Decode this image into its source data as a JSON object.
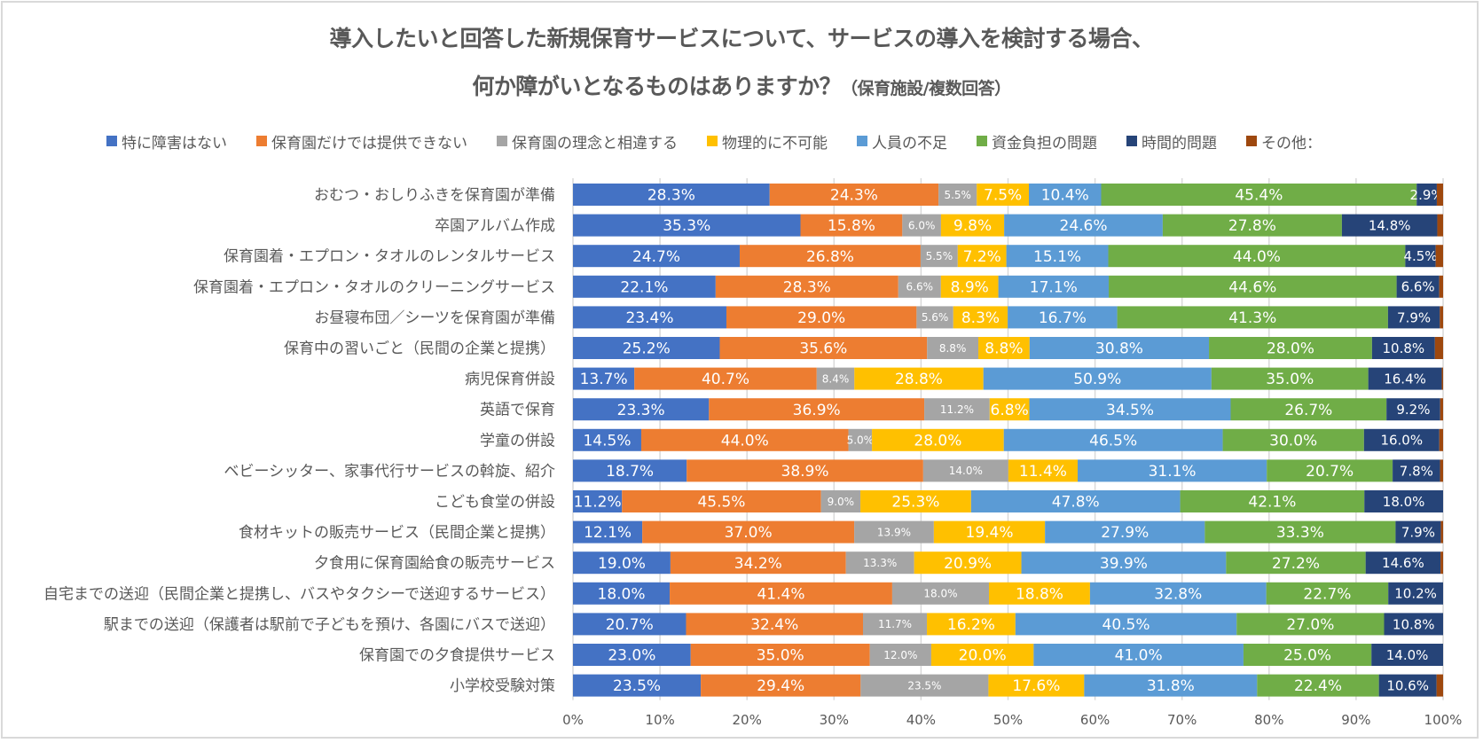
{
  "chart_data": {
    "type": "bar",
    "orientation": "horizontal",
    "stacked": "percent",
    "title": "導入したいと回答した新規保育サービスについて、サービスの導入を検討する場合、",
    "title_line2": "何か障がいとなるものはありますか？",
    "subtitle": "（保育施設/複数回答）",
    "xlabel": "",
    "ylabel": "",
    "xlim": [
      0,
      100
    ],
    "x_ticks": [
      "0%",
      "10%",
      "20%",
      "30%",
      "40%",
      "50%",
      "60%",
      "70%",
      "80%",
      "90%",
      "100%"
    ],
    "grid": true,
    "legend_position": "top",
    "categories": [
      "おむつ・おしりふきを保育園が準備",
      "卒園アルバム作成",
      "保育園着・エプロン・タオルのレンタルサービス",
      "保育園着・エプロン・タオルのクリーニングサービス",
      "お昼寝布団／シーツを保育園が準備",
      "保育中の習いごと（民間の企業と提携）",
      "病児保育併設",
      "英語で保育",
      "学童の併設",
      "ベビーシッター、家事代行サービスの斡旋、紹介",
      "こども食堂の併設",
      "食材キットの販売サービス（民間企業と提携）",
      "夕食用に保育園給食の販売サービス",
      "自宅までの送迎（民間企業と提携し、バスやタクシーで送迎するサービス）",
      "駅までの送迎（保護者は駅前で子どもを預け、各園にバスで送迎）",
      "保育園での夕食提供サービス",
      "小学校受験対策"
    ],
    "series": [
      {
        "name": "特に障害はない",
        "color": "#4472c4",
        "label_size": "large",
        "values": [
          28.3,
          35.3,
          24.7,
          22.1,
          23.4,
          25.2,
          13.7,
          23.3,
          14.5,
          18.7,
          11.2,
          12.1,
          19.0,
          18.0,
          20.7,
          23.0,
          23.5
        ]
      },
      {
        "name": "保育園だけでは提供できない",
        "color": "#ed7d31",
        "label_size": "large",
        "values": [
          24.3,
          15.8,
          26.8,
          28.3,
          29.0,
          35.6,
          40.7,
          36.9,
          44.0,
          38.9,
          45.5,
          37.0,
          34.2,
          41.4,
          32.4,
          35.0,
          29.4
        ]
      },
      {
        "name": "保育園の理念と相違する",
        "color": "#a5a5a5",
        "label_size": "small",
        "values": [
          5.5,
          6.0,
          5.5,
          6.6,
          5.6,
          8.8,
          8.4,
          11.2,
          5.0,
          14.0,
          9.0,
          13.9,
          13.3,
          18.0,
          11.7,
          12.0,
          23.5
        ]
      },
      {
        "name": "物理的に不可能",
        "color": "#ffc000",
        "label_size": "large",
        "values": [
          7.5,
          9.8,
          7.2,
          8.9,
          8.3,
          8.8,
          28.8,
          6.8,
          28.0,
          11.4,
          25.3,
          19.4,
          20.9,
          18.8,
          16.2,
          20.0,
          17.6
        ]
      },
      {
        "name": "人員の不足",
        "color": "#5b9bd5",
        "label_size": "large",
        "values": [
          10.4,
          24.6,
          15.1,
          17.1,
          16.7,
          30.8,
          50.9,
          34.5,
          46.5,
          31.1,
          47.8,
          27.9,
          39.9,
          32.8,
          40.5,
          41.0,
          31.8
        ]
      },
      {
        "name": "資金負担の問題",
        "color": "#70ad47",
        "label_size": "large",
        "values": [
          45.4,
          27.8,
          44.0,
          44.6,
          41.3,
          28.0,
          35.0,
          26.7,
          30.0,
          20.7,
          42.1,
          33.3,
          27.2,
          22.7,
          27.0,
          25.0,
          22.4
        ]
      },
      {
        "name": "時間的問題",
        "color": "#264478",
        "label_size": "medium",
        "values": [
          2.9,
          14.8,
          4.5,
          6.6,
          7.9,
          10.8,
          16.4,
          9.2,
          16.0,
          7.8,
          18.0,
          7.9,
          14.6,
          10.2,
          10.8,
          14.0,
          10.6
        ]
      },
      {
        "name": "その他：",
        "color": "#9e480e",
        "label_size": "none",
        "values": [
          0.9,
          0.9,
          1.1,
          0.6,
          0.5,
          1.4,
          0.3,
          0.5,
          0.8,
          0.5,
          0.0,
          0.4,
          0.5,
          0.0,
          0.0,
          0.0,
          1.2
        ]
      }
    ]
  }
}
